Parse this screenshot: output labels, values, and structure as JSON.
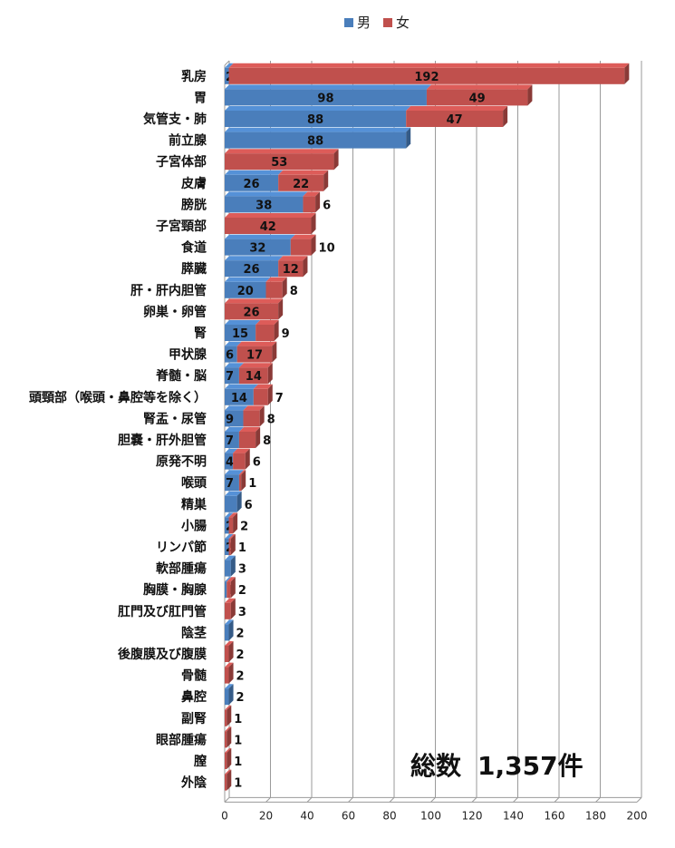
{
  "chart_data": {
    "type": "bar",
    "orientation": "horizontal",
    "stacked": true,
    "categories": [
      "乳房",
      "胃",
      "気管支・肺",
      "前立腺",
      "子宮体部",
      "皮膚",
      "膀胱",
      "子宮頸部",
      "食道",
      "膵臓",
      "肝・肝内胆管",
      "卵巣・卵管",
      "腎",
      "甲状腺",
      "脊髄・脳",
      "頭頸部（喉頭・鼻腔等を除く）",
      "腎盂・尿管",
      "胆嚢・肝外胆管",
      "原発不明",
      "喉頭",
      "精巣",
      "小腸",
      "リンパ節",
      "軟部腫瘍",
      "胸膜・胸腺",
      "肛門及び肛門管",
      "陰茎",
      "後腹膜及び腹膜",
      "骨髄",
      "鼻腔",
      "副腎",
      "眼部腫瘍",
      "膣",
      "外陰"
    ],
    "series": [
      {
        "name": "男",
        "color": "#4a7ebb",
        "values": [
          2,
          98,
          88,
          88,
          null,
          26,
          38,
          null,
          32,
          26,
          20,
          null,
          15,
          6,
          7,
          14,
          9,
          7,
          4,
          7,
          6,
          2,
          2,
          3,
          1,
          null,
          2,
          null,
          null,
          2,
          null,
          null,
          null,
          null
        ]
      },
      {
        "name": "女",
        "color": "#c0504d",
        "values": [
          192,
          49,
          47,
          null,
          53,
          22,
          6,
          42,
          10,
          12,
          8,
          26,
          9,
          17,
          14,
          7,
          8,
          8,
          6,
          1,
          null,
          2,
          1,
          null,
          2,
          3,
          null,
          2,
          2,
          null,
          1,
          1,
          1,
          1
        ]
      }
    ],
    "xlim": [
      0,
      200
    ],
    "xticks": [
      "0",
      "20",
      "40",
      "60",
      "80",
      "100",
      "120",
      "140",
      "160",
      "180",
      "200"
    ],
    "grid": true,
    "legend_position": "top"
  },
  "legend": {
    "male": "男",
    "female": "女"
  },
  "total": {
    "label": "総数",
    "value": "1,357件"
  }
}
